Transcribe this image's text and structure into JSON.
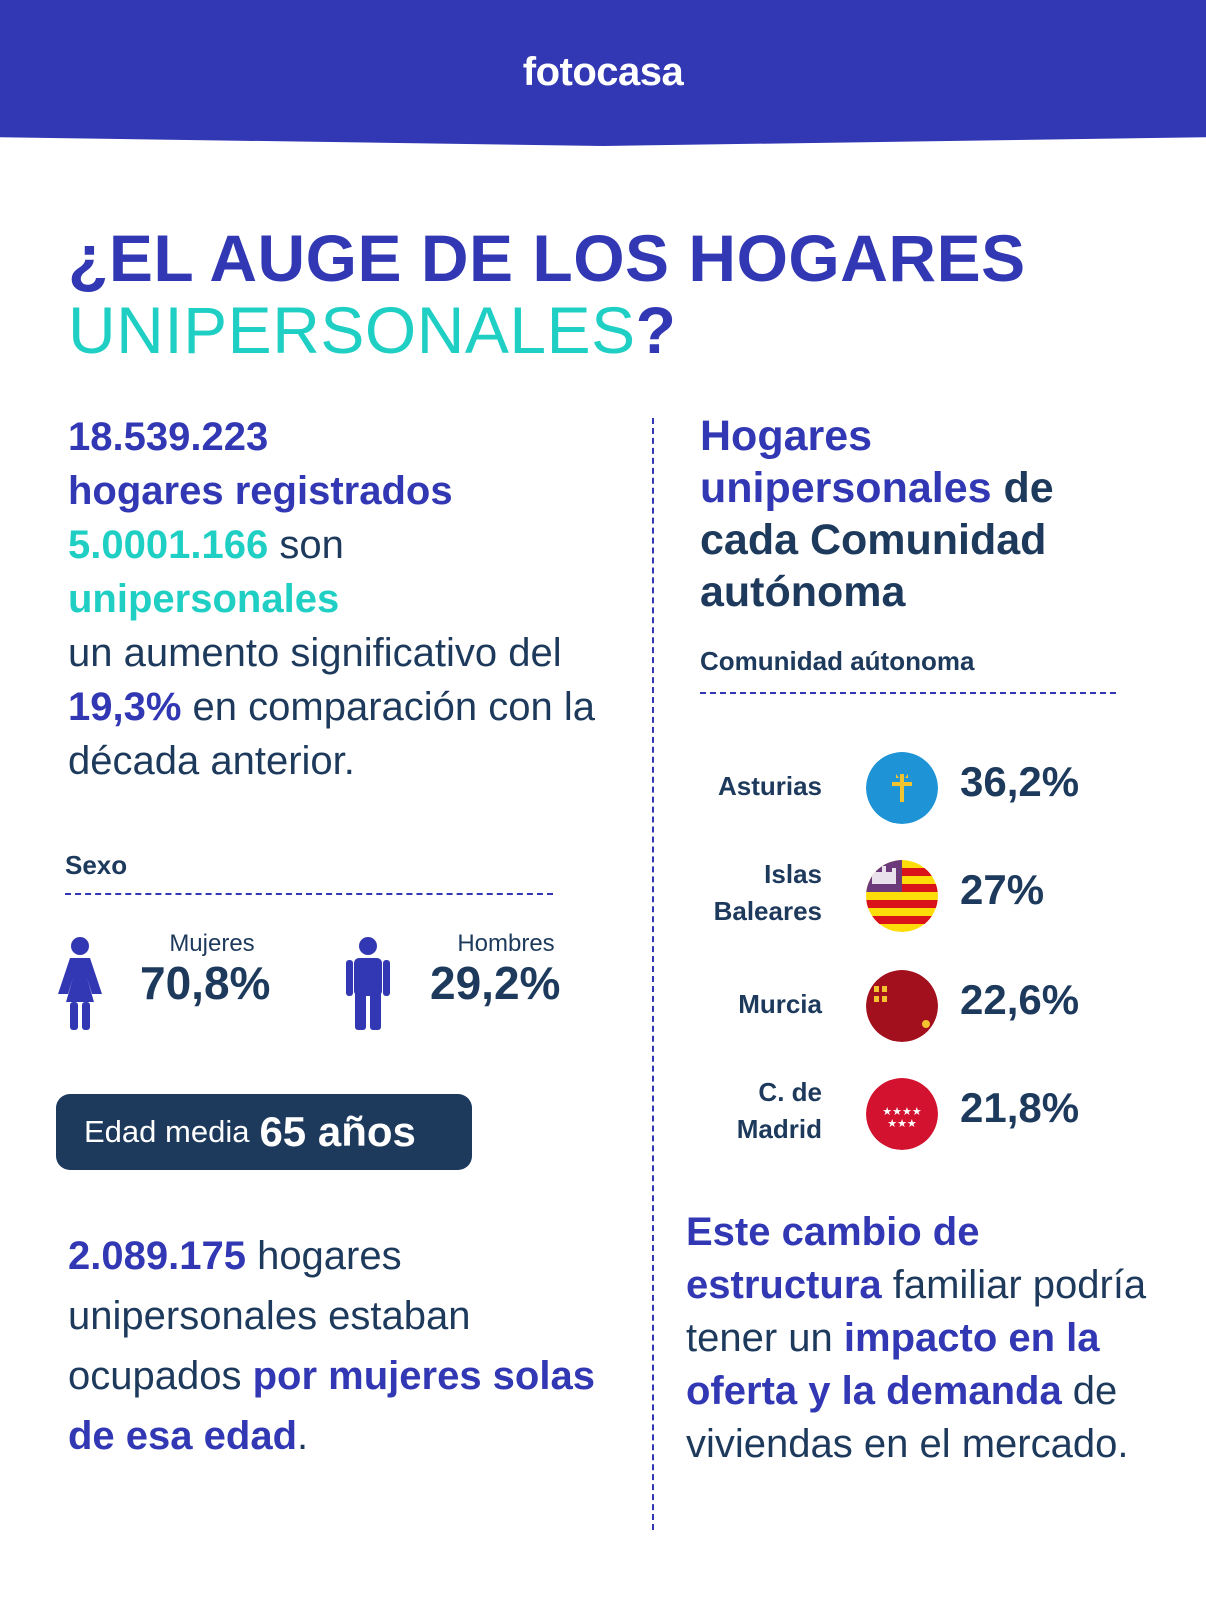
{
  "header": {
    "logo": "fotocasa",
    "color": "#3238b4"
  },
  "title": {
    "line1": "¿EL AUGE DE LOS HOGARES",
    "line2": "UNIPERSONALES",
    "line2_suffix": "?"
  },
  "left": {
    "registrados_num": "18.539.223",
    "registrados_text": "hogares registrados",
    "unipersonales_num": "5.0001.166",
    "son": " son",
    "unipersonales_word": "unipersonales",
    "aumento_pre": "un aumento significativo del ",
    "aumento_pct": "19,3%",
    "aumento_post": " en comparación con la década anterior.",
    "sexo_label": "Sexo",
    "mujeres_label": "Mujeres",
    "mujeres_value": "70,8%",
    "hombres_label": "Hombres",
    "hombres_value": "29,2%",
    "edad_label": "Edad media",
    "edad_value": "65 años",
    "hogares_num": "2.089.175",
    "hogares_mid": " hogares unipersonales estaban ocupados ",
    "hogares_bold": "por mujeres solas de esa edad",
    "hogares_end": "."
  },
  "right": {
    "title_bold_blue": "Hogares unipersonales",
    "title_rest": " de cada Comunidad autónoma",
    "comunidad_label": "Comunidad aútonoma",
    "regions": [
      {
        "name": "Asturias",
        "pct": "36,2%",
        "flag": "asturias-flag-icon"
      },
      {
        "name_line1": "Islas",
        "name_line2": "Baleares",
        "pct": "27%",
        "flag": "baleares-flag-icon"
      },
      {
        "name": "Murcia",
        "pct": "22,6%",
        "flag": "murcia-flag-icon"
      },
      {
        "name_line1": "C. de",
        "name_line2": "Madrid",
        "pct": "21,8%",
        "flag": "madrid-flag-icon"
      }
    ],
    "impact_b1": "Este cambio de estructura",
    "impact_t1": " familiar podría tener un ",
    "impact_b2": "impacto en la oferta y la demanda",
    "impact_t2": " de viviendas en el mercado."
  }
}
